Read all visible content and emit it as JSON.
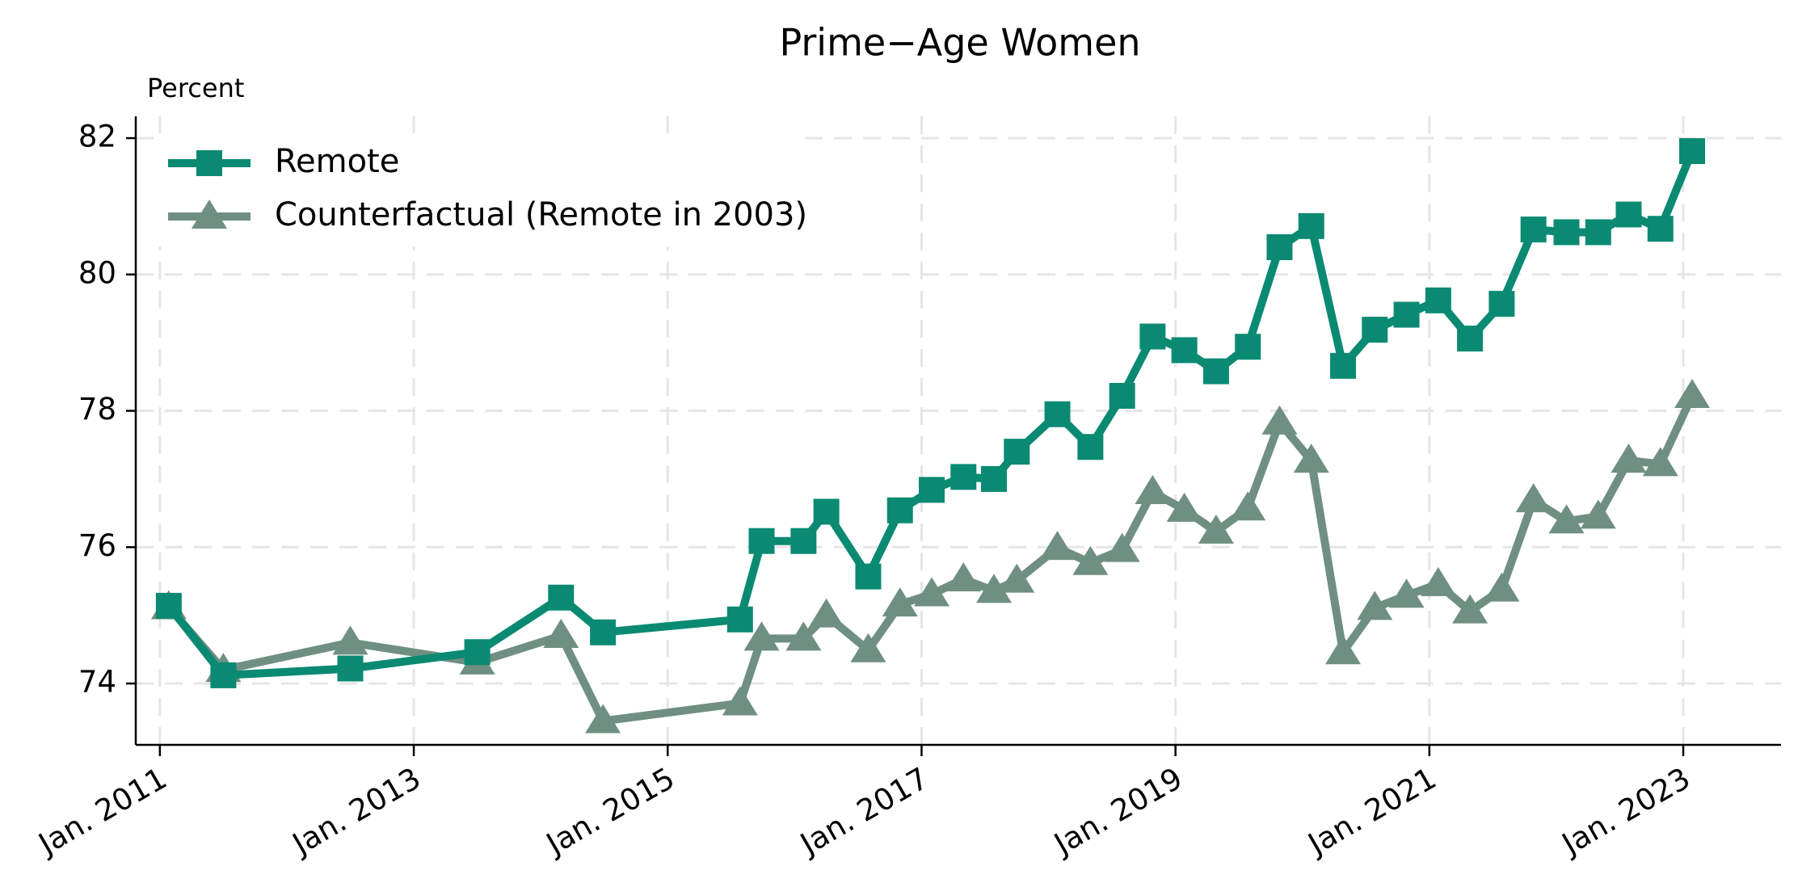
{
  "chart_data": {
    "type": "line",
    "title": "Prime−Age Women",
    "y_axis_label": "Percent",
    "xlim": [
      2010.81,
      2023.77
    ],
    "ylim": [
      73.1,
      82.32
    ],
    "xticks": [
      {
        "value": 2011,
        "label": "Jan. 2011"
      },
      {
        "value": 2013,
        "label": "Jan. 2013"
      },
      {
        "value": 2015,
        "label": "Jan. 2015"
      },
      {
        "value": 2017,
        "label": "Jan. 2017"
      },
      {
        "value": 2019,
        "label": "Jan. 2019"
      },
      {
        "value": 2021,
        "label": "Jan. 2021"
      },
      {
        "value": 2023,
        "label": "Jan. 2023"
      }
    ],
    "yticks": [
      74,
      76,
      78,
      80,
      82
    ],
    "grid": true,
    "legend": "upper left",
    "x": [
      2011.07,
      2011.5,
      2012.5,
      2013.5,
      2014.16,
      2014.49,
      2015.57,
      2015.74,
      2016.07,
      2016.25,
      2016.58,
      2016.83,
      2017.08,
      2017.33,
      2017.57,
      2017.75,
      2018.07,
      2018.33,
      2018.58,
      2018.82,
      2019.07,
      2019.32,
      2019.57,
      2019.82,
      2020.07,
      2020.32,
      2020.57,
      2020.82,
      2021.07,
      2021.32,
      2021.57,
      2021.82,
      2022.08,
      2022.33,
      2022.57,
      2022.82,
      2023.07
    ],
    "series": [
      {
        "name": "Remote",
        "color": "#0a8a72",
        "marker": "square",
        "values": [
          75.14,
          74.12,
          74.22,
          74.46,
          75.26,
          74.75,
          74.94,
          76.09,
          76.09,
          76.52,
          75.57,
          76.54,
          76.84,
          77.03,
          77.0,
          77.4,
          77.95,
          77.47,
          78.22,
          79.09,
          78.89,
          78.58,
          78.94,
          80.4,
          80.71,
          78.66,
          79.19,
          79.41,
          79.62,
          79.06,
          79.57,
          80.66,
          80.62,
          80.62,
          80.88,
          80.67,
          81.81
        ]
      },
      {
        "name": "Counterfactual (Remote in 2003)",
        "color": "#6f8f82",
        "marker": "triangle",
        "values": [
          75.12,
          74.2,
          74.6,
          74.31,
          74.7,
          73.45,
          73.71,
          74.66,
          74.66,
          75.0,
          74.49,
          75.16,
          75.31,
          75.53,
          75.36,
          75.51,
          75.99,
          75.77,
          75.96,
          76.81,
          76.55,
          76.23,
          76.57,
          77.83,
          77.27,
          74.46,
          75.11,
          75.29,
          75.46,
          75.06,
          75.38,
          76.69,
          76.38,
          76.45,
          77.27,
          77.22,
          78.22
        ]
      }
    ]
  }
}
